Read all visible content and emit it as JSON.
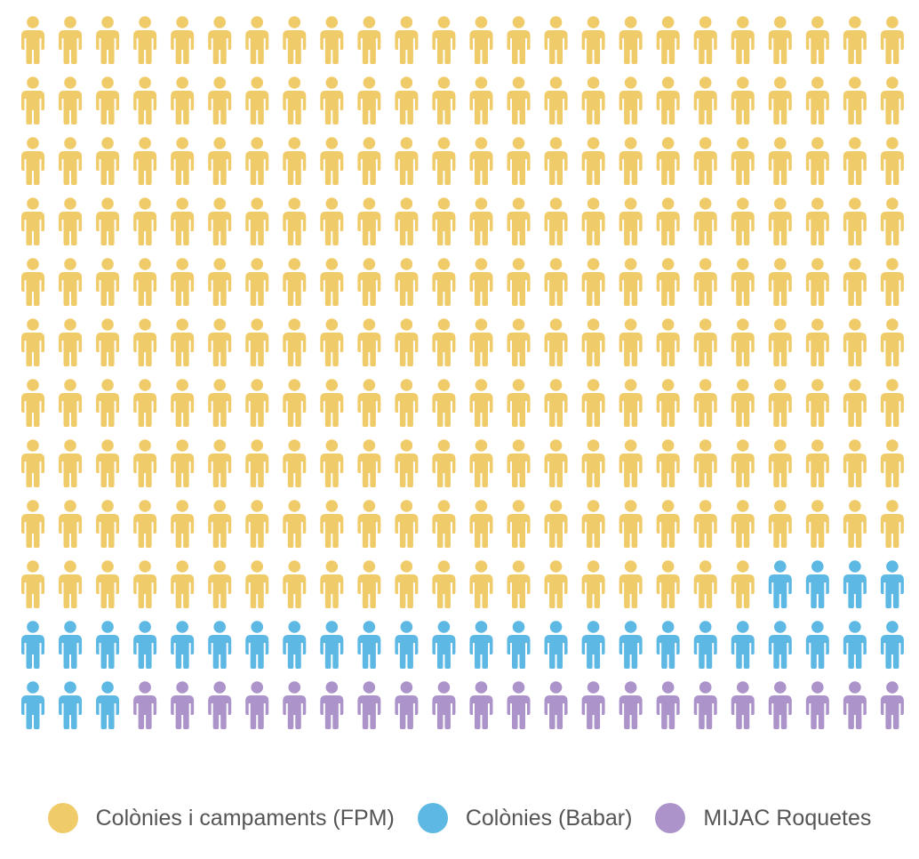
{
  "chart_data": {
    "type": "pictogram",
    "icon": "person-icon",
    "grid": {
      "rows": 12,
      "columns": 24
    },
    "series": [
      {
        "name": "Colònies i campaments (FPM)",
        "value": 236,
        "color": "#F0CB6A"
      },
      {
        "name": "Colònies (Babar)",
        "value": 31,
        "color": "#5DB8E3"
      },
      {
        "name": "MIJAC Roquetes",
        "value": 21,
        "color": "#AC93C9"
      }
    ],
    "legend_position": "bottom"
  }
}
